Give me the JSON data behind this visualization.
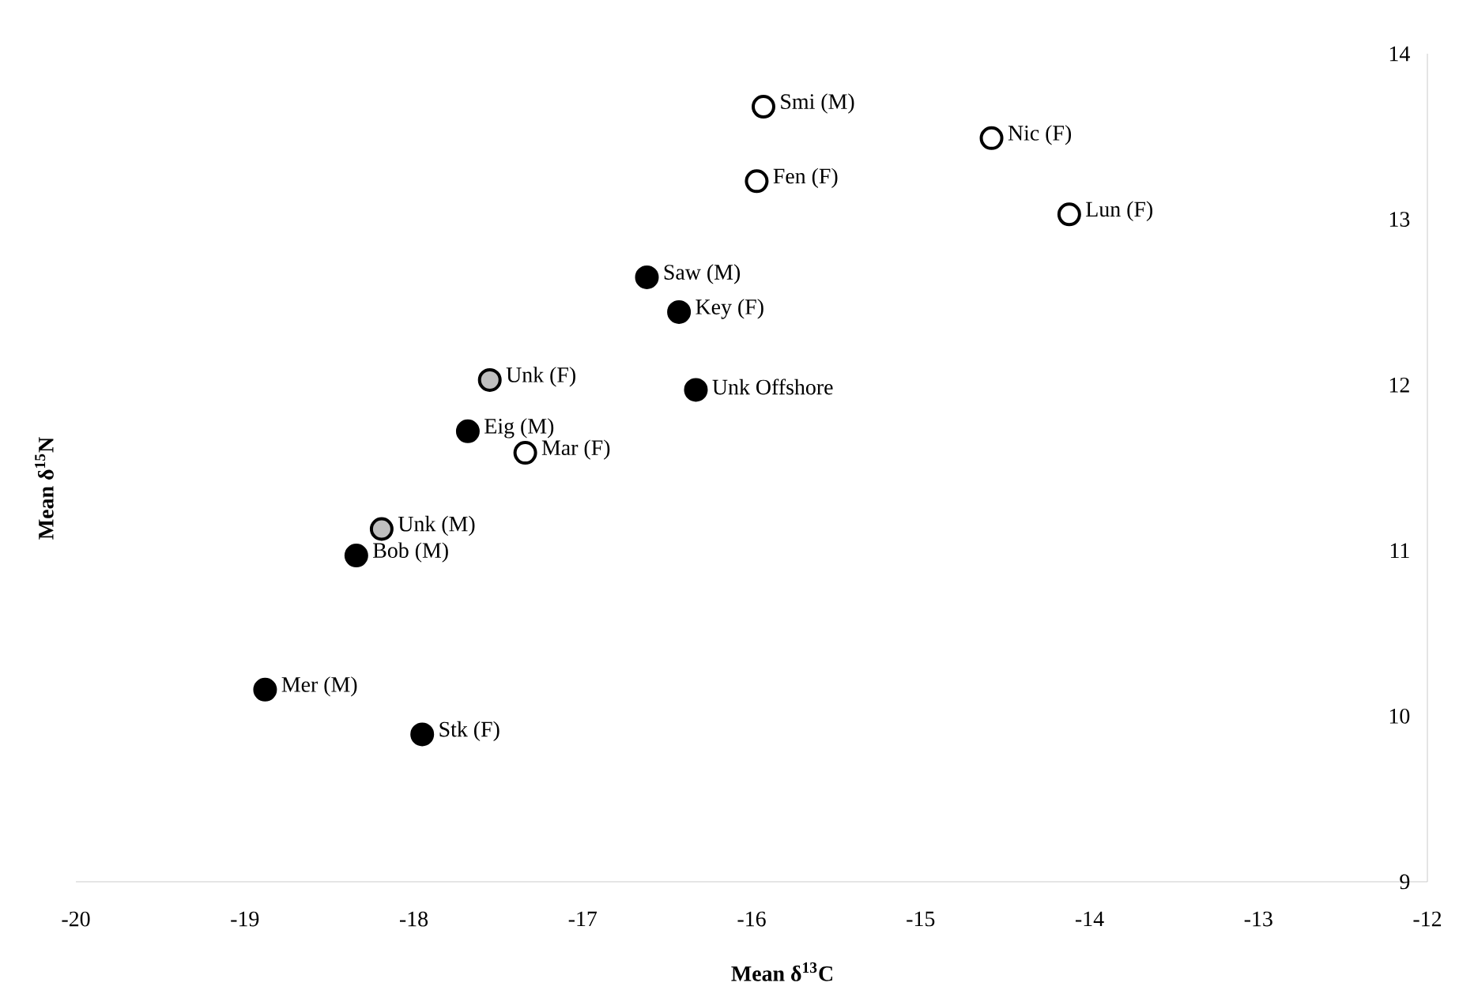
{
  "chart_data": {
    "type": "scatter",
    "xlabel": "Mean δ$^{13}$C",
    "ylabel": "Mean δ$^{15}$N",
    "xlim": [
      -20,
      -12
    ],
    "xticks": [
      -20,
      -19,
      -18,
      -17,
      -16,
      -15,
      -14,
      -13,
      -12
    ],
    "ylim": [
      9,
      14
    ],
    "yticks": [
      9,
      10,
      11,
      12,
      13,
      14
    ],
    "marker": "circle",
    "series": [
      {
        "color": "#000000",
        "x": [
          -16.62,
          -16.43,
          -16.33,
          -17.68,
          -18.34,
          -18.88,
          -17.95
        ],
        "values": [
          12.65,
          12.44,
          11.97,
          11.72,
          10.97,
          10.16,
          9.89
        ]
      },
      {
        "color": "#ffffff",
        "x": [
          -15.93,
          -14.58,
          -15.97,
          -14.12,
          -17.34
        ],
        "values": [
          13.68,
          13.49,
          13.23,
          13.03,
          11.59
        ]
      },
      {
        "color": "#bfbfbf",
        "x": [
          -17.55,
          -18.19
        ],
        "values": [
          12.03,
          11.13
        ]
      }
    ],
    "annotations": [
      {
        "text": "Smi (M)",
        "x": -15.93,
        "y": 13.68
      },
      {
        "text": "Nic (F)",
        "x": -14.58,
        "y": 13.49
      },
      {
        "text": "Fen (F)",
        "x": -15.97,
        "y": 13.23
      },
      {
        "text": "Lun (F)",
        "x": -14.12,
        "y": 13.03
      },
      {
        "text": "Saw (M)",
        "x": -16.62,
        "y": 12.65
      },
      {
        "text": "Key (F)",
        "x": -16.43,
        "y": 12.44
      },
      {
        "text": "Unk (F)",
        "x": -17.55,
        "y": 12.03
      },
      {
        "text": "Unk Offshore",
        "x": -16.33,
        "y": 11.97
      },
      {
        "text": "Eig (M)",
        "x": -17.68,
        "y": 11.72
      },
      {
        "text": "Mar (F)",
        "x": -17.34,
        "y": 11.59
      },
      {
        "text": "Unk (M)",
        "x": -18.19,
        "y": 11.13
      },
      {
        "text": "Bob (M)",
        "x": -18.34,
        "y": 10.97
      },
      {
        "text": "Mer (M)",
        "x": -18.88,
        "y": 10.16
      },
      {
        "text": "Stk (F)",
        "x": -17.95,
        "y": 9.89
      }
    ]
  }
}
